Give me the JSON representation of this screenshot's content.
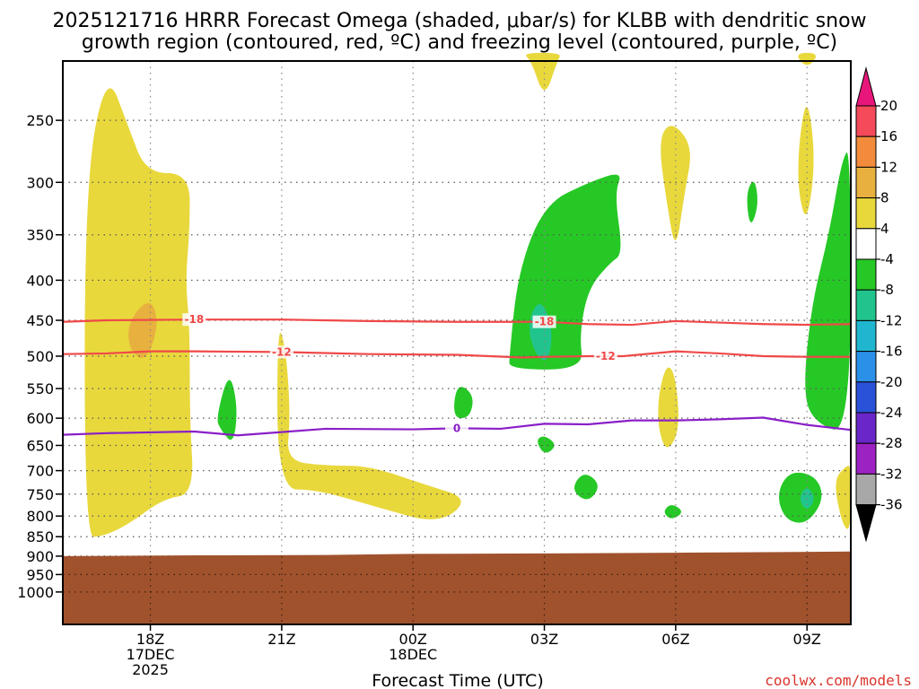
{
  "title_lines": [
    "2025121716 HRRR Forecast Omega (shaded, μbar/s) for KLBB with dendritic snow",
    "growth region (contoured, red, ºC) and freezing level (contoured, purple, ºC)"
  ],
  "credit": "coolwx.com/models",
  "chart_data": {
    "type": "time-height cross section",
    "title": "2025121716 HRRR Forecast Omega (shaded, μbar/s) for KLBB with dendritic snow growth region (contoured, red, ºC) and freezing level (contoured, purple, ºC)",
    "xlabel": "Forecast Time (UTC)",
    "y_axis": {
      "scale": "log-pressure",
      "inverted": true,
      "unit": "mb",
      "ticks": [
        250,
        300,
        350,
        400,
        450,
        500,
        550,
        600,
        650,
        700,
        750,
        800,
        850,
        900,
        950,
        1000
      ]
    },
    "x_axis": {
      "hours": [
        18,
        21,
        24,
        27,
        30,
        33
      ],
      "ticks": [
        {
          "hour": 18,
          "lines": [
            "18Z",
            "17DEC",
            "2025"
          ]
        },
        {
          "hour": 21,
          "lines": [
            "21Z"
          ]
        },
        {
          "hour": 24,
          "lines": [
            "00Z",
            "18DEC"
          ]
        },
        {
          "hour": 27,
          "lines": [
            "03Z"
          ]
        },
        {
          "hour": 30,
          "lines": [
            "06Z"
          ]
        },
        {
          "hour": 33,
          "lines": [
            "09Z"
          ]
        }
      ],
      "range_hours": [
        16.0,
        34.0
      ]
    },
    "grid": true,
    "colorbar": {
      "levels": [
        "20",
        "16",
        "12",
        "8",
        "4",
        "-4",
        "-8",
        "-12",
        "-16",
        "-20",
        "-24",
        "-28",
        "-32",
        "-36"
      ],
      "colors": [
        "#f44a5a",
        "#f28c3c",
        "#e8b03f",
        "#e8d83c",
        "#ffffff",
        "#26c826",
        "#22c48e",
        "#21b6d0",
        "#2b90e8",
        "#2a52d8",
        "#6a26c8",
        "#9c22c2",
        "#a8a8a8"
      ],
      "top_arrow_color": "#e8167a",
      "bottom_arrow_color": "#000000"
    },
    "surface_color": "#a0522d",
    "contours": [
      {
        "label": "-18",
        "color": "#f04848",
        "points": [
          [
            16.0,
            452
          ],
          [
            17.0,
            450
          ],
          [
            19.0,
            449
          ],
          [
            21.0,
            449
          ],
          [
            23.0,
            451
          ],
          [
            25.0,
            452
          ],
          [
            27.0,
            452
          ],
          [
            28.0,
            455
          ],
          [
            29.0,
            456
          ],
          [
            29.8,
            452
          ],
          [
            30.0,
            451
          ],
          [
            31.0,
            453
          ],
          [
            32.0,
            455
          ],
          [
            33.0,
            456
          ],
          [
            34.0,
            455
          ]
        ]
      },
      {
        "label": "-12",
        "color": "#f04848",
        "points": [
          [
            16.0,
            497
          ],
          [
            17.0,
            496
          ],
          [
            18.0,
            493
          ],
          [
            19.0,
            493
          ],
          [
            21.0,
            494
          ],
          [
            23.0,
            497
          ],
          [
            25.0,
            498
          ],
          [
            26.5,
            502
          ],
          [
            27.0,
            501
          ],
          [
            28.0,
            500
          ],
          [
            28.8,
            500
          ],
          [
            30.0,
            493
          ],
          [
            31.0,
            496
          ],
          [
            32.0,
            500
          ],
          [
            33.0,
            501
          ],
          [
            34.0,
            501
          ]
        ]
      },
      {
        "label": "0",
        "color": "#8a1fc8",
        "points": [
          [
            16.0,
            630
          ],
          [
            17.0,
            627
          ],
          [
            19.0,
            624
          ],
          [
            20.0,
            631
          ],
          [
            21.0,
            625
          ],
          [
            22.0,
            619
          ],
          [
            24.0,
            620
          ],
          [
            25.0,
            618
          ],
          [
            26.0,
            619
          ],
          [
            27.0,
            610
          ],
          [
            28.0,
            611
          ],
          [
            29.0,
            604
          ],
          [
            30.0,
            604
          ],
          [
            31.0,
            602
          ],
          [
            32.0,
            599
          ],
          [
            33.0,
            612
          ],
          [
            34.0,
            621
          ]
        ]
      }
    ],
    "shaded_regions": [
      {
        "value": "4 to 8",
        "color": "#e8d83c",
        "points": [
          [
            16.5,
            850
          ],
          [
            16.5,
            300
          ],
          [
            17.0,
            215
          ],
          [
            17.5,
            255
          ],
          [
            17.9,
            292
          ],
          [
            18.9,
            292
          ],
          [
            18.9,
            345
          ],
          [
            18.8,
            400
          ],
          [
            18.9,
            460
          ],
          [
            18.9,
            600
          ],
          [
            19.0,
            750
          ],
          [
            18.3,
            760
          ],
          [
            17.5,
            820
          ],
          [
            16.9,
            850
          ]
        ]
      },
      {
        "value": "8 to 12",
        "color": "#e8b03f",
        "points": [
          [
            17.5,
            450
          ],
          [
            18.0,
            420
          ],
          [
            18.2,
            455
          ],
          [
            17.9,
            510
          ],
          [
            17.5,
            490
          ]
        ]
      },
      {
        "value": "4 to 8",
        "color": "#e8d83c",
        "points": [
          [
            20.9,
            450
          ],
          [
            21.1,
            490
          ],
          [
            21.2,
            600
          ],
          [
            21.1,
            680
          ],
          [
            22.0,
            690
          ],
          [
            23.0,
            690
          ],
          [
            24.3,
            730
          ],
          [
            25.3,
            760
          ],
          [
            24.6,
            820
          ],
          [
            23.2,
            780
          ],
          [
            21.8,
            740
          ],
          [
            20.9,
            740
          ]
        ]
      },
      {
        "value": "4 to 8",
        "color": "#e8d83c",
        "points": [
          [
            26.5,
            205
          ],
          [
            26.7,
            210
          ],
          [
            27.0,
            235
          ],
          [
            27.3,
            210
          ],
          [
            27.4,
            205
          ]
        ]
      },
      {
        "value": "4 to 8",
        "color": "#e8d83c",
        "points": [
          [
            29.6,
            265
          ],
          [
            29.9,
            250
          ],
          [
            30.4,
            270
          ],
          [
            30.2,
            310
          ],
          [
            30.0,
            370
          ],
          [
            29.8,
            320
          ]
        ]
      },
      {
        "value": "4 to 8",
        "color": "#e8d83c",
        "points": [
          [
            29.6,
            560
          ],
          [
            29.8,
            510
          ],
          [
            30.0,
            530
          ],
          [
            30.1,
            620
          ],
          [
            29.8,
            665
          ],
          [
            29.6,
            620
          ]
        ]
      },
      {
        "value": "4 to 8",
        "color": "#e8d83c",
        "points": [
          [
            32.7,
            205
          ],
          [
            33.0,
            215
          ],
          [
            33.3,
            205
          ]
        ]
      },
      {
        "value": "4 to 8",
        "color": "#e8d83c",
        "points": [
          [
            32.8,
            270
          ],
          [
            33.0,
            230
          ],
          [
            33.2,
            280
          ],
          [
            33.0,
            340
          ],
          [
            32.8,
            310
          ]
        ]
      },
      {
        "value": "-4 to -8",
        "color": "#26c826",
        "points": [
          [
            19.5,
            600
          ],
          [
            19.8,
            520
          ],
          [
            20.0,
            580
          ],
          [
            19.9,
            650
          ],
          [
            19.6,
            620
          ]
        ]
      },
      {
        "value": "-4 to -8",
        "color": "#26c826",
        "points": [
          [
            24.9,
            600
          ],
          [
            25.0,
            540
          ],
          [
            25.4,
            560
          ],
          [
            25.3,
            600
          ]
        ]
      },
      {
        "value": "-4 to -8",
        "color": "#26c826",
        "points": [
          [
            26.2,
            500
          ],
          [
            26.4,
            390
          ],
          [
            27.0,
            320
          ],
          [
            28.0,
            300
          ],
          [
            28.8,
            290
          ],
          [
            28.6,
            310
          ],
          [
            28.8,
            370
          ],
          [
            28.5,
            380
          ],
          [
            28.0,
            410
          ],
          [
            27.8,
            470
          ],
          [
            27.9,
            520
          ],
          [
            26.2,
            520
          ]
        ]
      },
      {
        "value": "-4 to -8",
        "color": "#26c826",
        "points": [
          [
            26.8,
            640
          ],
          [
            27.0,
            630
          ],
          [
            27.3,
            650
          ],
          [
            27.0,
            670
          ]
        ]
      },
      {
        "value": "-4 to -8",
        "color": "#26c826",
        "points": [
          [
            27.6,
            740
          ],
          [
            27.9,
            700
          ],
          [
            28.3,
            730
          ],
          [
            28.0,
            770
          ]
        ]
      },
      {
        "value": "-4 to -8",
        "color": "#26c826",
        "points": [
          [
            29.7,
            790
          ],
          [
            29.9,
            770
          ],
          [
            30.2,
            790
          ],
          [
            29.9,
            810
          ]
        ]
      },
      {
        "value": "-4 to -8",
        "color": "#26c826",
        "points": [
          [
            31.6,
            310
          ],
          [
            31.8,
            295
          ],
          [
            31.9,
            320
          ],
          [
            31.7,
            345
          ]
        ]
      },
      {
        "value": "-4 to -8",
        "color": "#26c826",
        "points": [
          [
            32.9,
            560
          ],
          [
            33.1,
            430
          ],
          [
            33.5,
            350
          ],
          [
            33.8,
            280
          ],
          [
            34.0,
            270
          ],
          [
            34.0,
            630
          ],
          [
            33.2,
            610
          ]
        ]
      },
      {
        "value": "-8 to -12",
        "color": "#22c48e",
        "points": [
          [
            26.6,
            455
          ],
          [
            26.9,
            420
          ],
          [
            27.2,
            460
          ],
          [
            27.1,
            510
          ],
          [
            26.8,
            500
          ]
        ]
      },
      {
        "value": "-4 to -8",
        "color": "#26c826",
        "points": [
          [
            32.3,
            750
          ],
          [
            32.6,
            700
          ],
          [
            33.2,
            710
          ],
          [
            33.4,
            760
          ],
          [
            33.0,
            820
          ],
          [
            32.5,
            810
          ]
        ]
      },
      {
        "value": "-8 to -12",
        "color": "#22c48e",
        "points": [
          [
            32.8,
            760
          ],
          [
            33.0,
            730
          ],
          [
            33.2,
            760
          ],
          [
            33.0,
            790
          ]
        ]
      },
      {
        "value": "4 to 8",
        "color": "#e8d83c",
        "points": [
          [
            33.6,
            720
          ],
          [
            33.9,
            690
          ],
          [
            34.0,
            690
          ],
          [
            34.0,
            840
          ],
          [
            33.8,
            820
          ]
        ]
      }
    ]
  }
}
